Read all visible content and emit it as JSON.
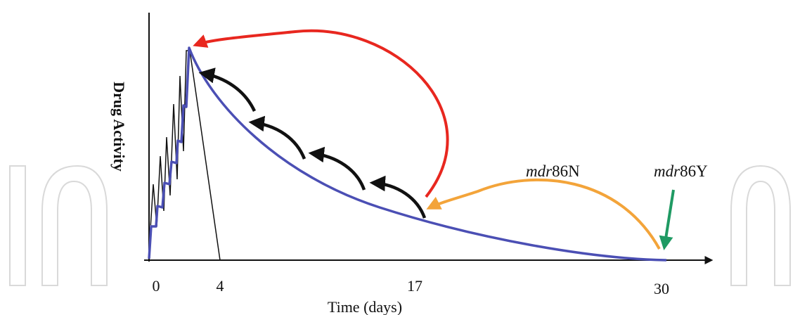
{
  "axes": {
    "y_label": "Drug Activity",
    "x_label": "Time (days)",
    "x_ticks": [
      "0",
      "4",
      "17",
      "30"
    ]
  },
  "labels": {
    "allele_n": {
      "italic": "mdr",
      "plain": "86N"
    },
    "allele_y": {
      "italic": "mdr",
      "plain": "86Y"
    }
  },
  "watermark": "In",
  "colors": {
    "decay_curve": "#4b4fb4",
    "fast_line": "#111111",
    "red_arrow": "#e8271f",
    "orange_arrow": "#f3a43a",
    "green_arrow": "#1f9a63",
    "black_arrows": "#111111"
  }
}
